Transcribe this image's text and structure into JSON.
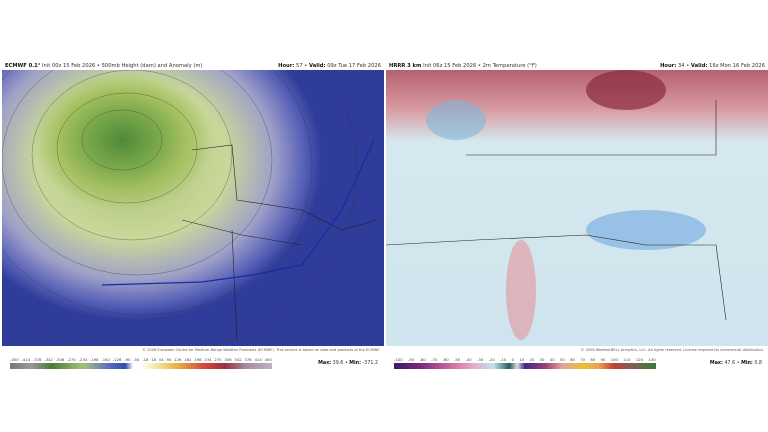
{
  "left": {
    "model": "ECMWF 0.1°",
    "init": "Init 00z 15 Feb 2026 • 500mb Height (dam) and Anomaly (m)",
    "hour_label": "Hour:",
    "hour": "57",
    "valid_label": "Valid:",
    "valid": "09z Tue 17 Feb 2026",
    "credit": "© 2026 European Centre for Medium-Range Weather Forecasts (ECMWF). This service is based on data and products of the ECMWF.",
    "colorbar": [
      "-450",
      "-414",
      "-378",
      "-342",
      "-306",
      "-270",
      "-234",
      "-198",
      "-162",
      "-126",
      "-90",
      "-54",
      "-18",
      "18",
      "54",
      "90",
      "126",
      "162",
      "198",
      "234",
      "270",
      "306",
      "342",
      "378",
      "414",
      "450"
    ],
    "max_label": "Max:",
    "max": "39.6",
    "min_label": "Min:",
    "min": "-371.2"
  },
  "right": {
    "model": "HRRR 3 km",
    "init": "Init 06z 15 Feb 2026 • 2m Temperature (°F)",
    "hour_label": "Hour:",
    "hour": "34",
    "valid_label": "Valid:",
    "valid": "16z Mon 16 Feb 2026",
    "credit": "© 2026 WeatherBELL Analytics, LLC. All rights reserved. License required for commercial distribution.",
    "colorbar": [
      "-100",
      "-90",
      "-80",
      "-70",
      "-60",
      "-50",
      "-40",
      "-30",
      "-20",
      "-10",
      "0",
      "10",
      "20",
      "30",
      "40",
      "50",
      "60",
      "70",
      "80",
      "90",
      "100",
      "110",
      "120",
      "130"
    ],
    "max_label": "Max:",
    "max": "47.6",
    "min_label": "Min:",
    "min": "0.8"
  }
}
